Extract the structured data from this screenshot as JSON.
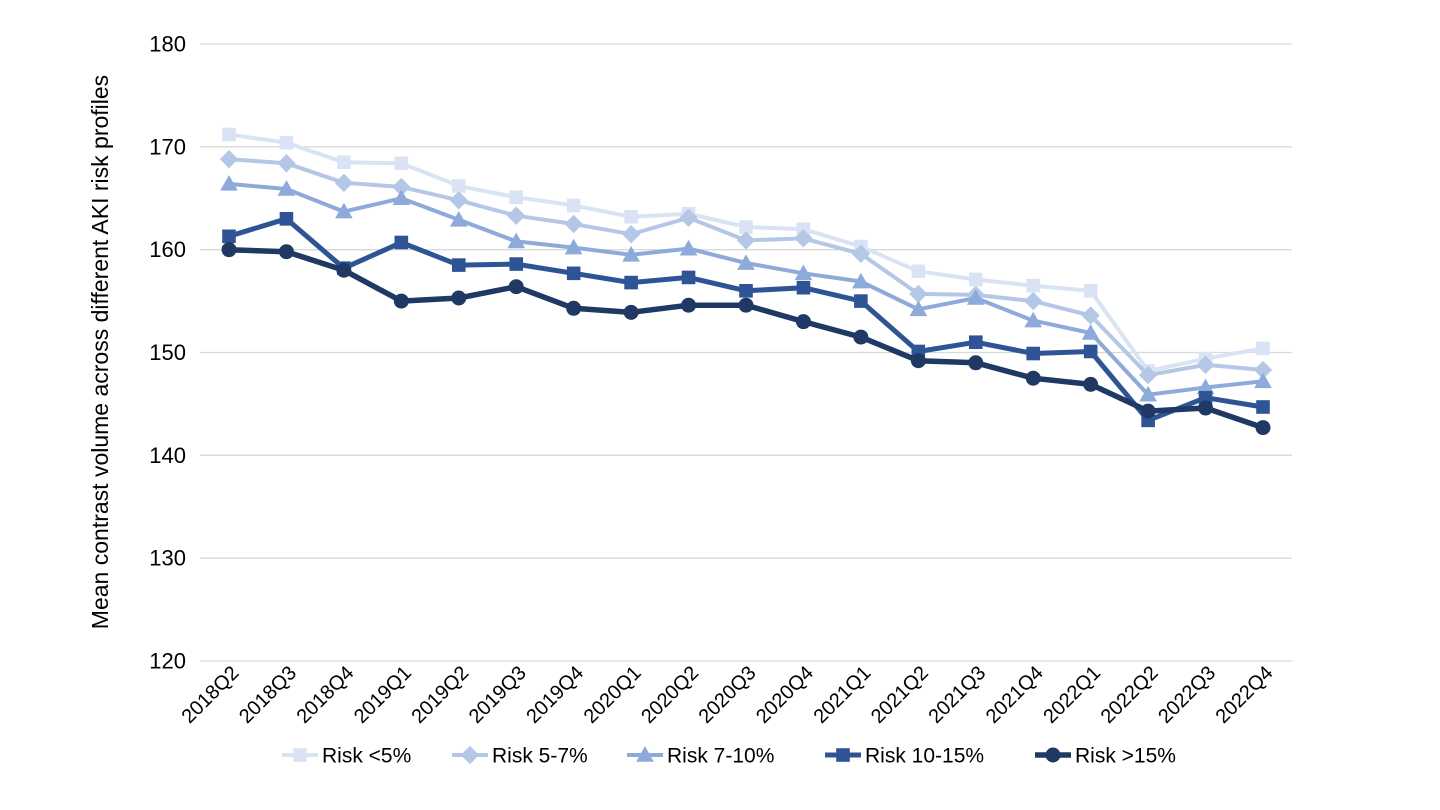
{
  "page": {
    "background": "#ffffff",
    "text_color": "#000000",
    "gridline_color": "#d9d9d9"
  },
  "chart_data": {
    "type": "line",
    "title": "",
    "xlabel": "",
    "ylabel": "Mean contrast volume across different AKI risk profiles",
    "ylim": [
      120,
      180
    ],
    "yticks": [
      120,
      130,
      140,
      150,
      160,
      170,
      180
    ],
    "grid": "horizontal",
    "legend_position": "bottom",
    "categories": [
      "2018Q2",
      "2018Q3",
      "2018Q4",
      "2019Q1",
      "2019Q2",
      "2019Q3",
      "2019Q4",
      "2020Q1",
      "2020Q2",
      "2020Q3",
      "2020Q4",
      "2021Q1",
      "2021Q2",
      "2021Q3",
      "2021Q4",
      "2022Q1",
      "2022Q2",
      "2022Q3",
      "2022Q4"
    ],
    "series": [
      {
        "name": "Risk <5%",
        "marker": "square",
        "color": "#dae3f3",
        "line_width": 4,
        "values": [
          171.2,
          170.4,
          168.5,
          168.4,
          166.2,
          165.1,
          164.3,
          163.2,
          163.5,
          162.2,
          162.0,
          160.3,
          157.9,
          157.1,
          156.5,
          156.0,
          148.2,
          149.4,
          150.4
        ]
      },
      {
        "name": "Risk 5-7%",
        "marker": "diamond",
        "color": "#b4c7e7",
        "line_width": 4,
        "values": [
          168.8,
          168.4,
          166.5,
          166.1,
          164.8,
          163.3,
          162.5,
          161.5,
          163.1,
          160.9,
          161.1,
          159.6,
          155.7,
          155.6,
          155.0,
          153.6,
          147.8,
          148.8,
          148.3
        ]
      },
      {
        "name": "Risk 7-10%",
        "marker": "triangle",
        "color": "#8eaadb",
        "line_width": 4,
        "values": [
          166.4,
          165.9,
          163.7,
          165.0,
          162.9,
          160.8,
          160.2,
          159.5,
          160.1,
          158.7,
          157.7,
          156.9,
          154.2,
          155.3,
          153.1,
          151.9,
          145.9,
          146.6,
          147.2
        ]
      },
      {
        "name": "Risk 10-15%",
        "marker": "square",
        "color": "#2f5496",
        "line_width": 5,
        "values": [
          161.3,
          163.0,
          158.2,
          160.7,
          158.5,
          158.6,
          157.7,
          156.8,
          157.3,
          156.0,
          156.3,
          155.0,
          150.1,
          151.0,
          149.9,
          150.1,
          143.4,
          145.6,
          144.7
        ]
      },
      {
        "name": "Risk >15%",
        "marker": "circle",
        "color": "#1f3864",
        "line_width": 5.5,
        "values": [
          160.0,
          159.8,
          158.0,
          155.0,
          155.3,
          156.4,
          154.3,
          153.9,
          154.6,
          154.6,
          153.0,
          151.5,
          149.2,
          149.0,
          147.5,
          146.9,
          144.3,
          144.6,
          142.7
        ]
      }
    ]
  }
}
